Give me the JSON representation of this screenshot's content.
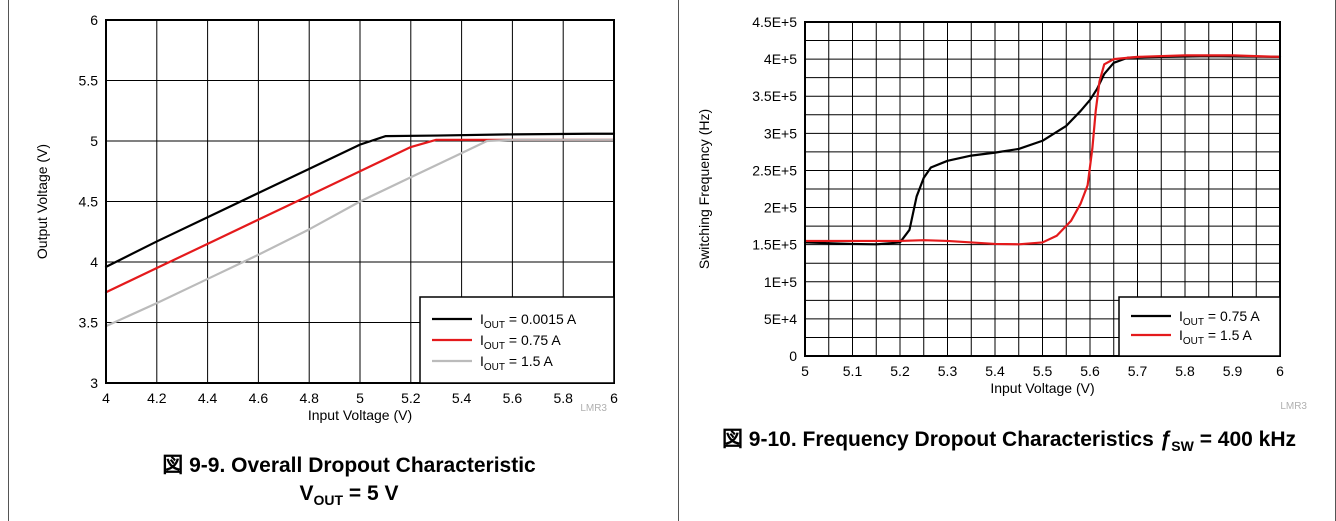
{
  "chart_data": [
    {
      "type": "line",
      "xlabel": "Input Voltage (V)",
      "ylabel": "Output Voltage (V)",
      "xlim": [
        4,
        6
      ],
      "ylim": [
        3,
        6
      ],
      "x_ticks": [
        "4",
        "4.2",
        "4.4",
        "4.6",
        "4.8",
        "5",
        "5.2",
        "5.4",
        "5.6",
        "5.8",
        "6"
      ],
      "y_ticks": [
        "3",
        "3.5",
        "4",
        "4.5",
        "5",
        "5.5",
        "6"
      ],
      "grid": true,
      "legend_position": "bottom-right",
      "watermark": "LMR3",
      "caption": {
        "figure_no": "図 9-9.",
        "title": "Overall Dropout Characteristic",
        "line2_main": "V",
        "line2_sub": "OUT",
        "line2_rest": " = 5 V"
      },
      "series": [
        {
          "name_main": "I",
          "name_sub": "OUT",
          "name_rest": " = 0.0015 A",
          "color": "#000000",
          "points": [
            [
              4.0,
              3.96
            ],
            [
              4.2,
              4.17
            ],
            [
              4.4,
              4.37
            ],
            [
              4.6,
              4.57
            ],
            [
              4.8,
              4.77
            ],
            [
              5.0,
              4.97
            ],
            [
              5.1,
              5.04
            ],
            [
              5.3,
              5.045
            ],
            [
              5.6,
              5.055
            ],
            [
              5.9,
              5.06
            ],
            [
              6.0,
              5.06
            ]
          ]
        },
        {
          "name_main": "I",
          "name_sub": "OUT",
          "name_rest": " = 0.75 A",
          "color": "#e41a1c",
          "points": [
            [
              4.0,
              3.75
            ],
            [
              4.2,
              3.95
            ],
            [
              4.4,
              4.15
            ],
            [
              4.6,
              4.35
            ],
            [
              4.8,
              4.55
            ],
            [
              5.0,
              4.75
            ],
            [
              5.2,
              4.95
            ],
            [
              5.3,
              5.01
            ],
            [
              5.6,
              5.01
            ],
            [
              6.0,
              5.01
            ]
          ]
        },
        {
          "name_main": "I",
          "name_sub": "OUT",
          "name_rest": " = 1.5 A",
          "color": "#bbbbbb",
          "points": [
            [
              4.0,
              3.47
            ],
            [
              4.2,
              3.66
            ],
            [
              4.4,
              3.86
            ],
            [
              4.6,
              4.06
            ],
            [
              4.8,
              4.27
            ],
            [
              5.0,
              4.5
            ],
            [
              5.2,
              4.7
            ],
            [
              5.4,
              4.9
            ],
            [
              5.5,
              5.0
            ],
            [
              5.6,
              5.01
            ],
            [
              6.0,
              5.01
            ]
          ]
        }
      ]
    },
    {
      "type": "line",
      "xlabel": "Input Voltage (V)",
      "ylabel": "Switching Frequency (Hz)",
      "xlim": [
        5,
        6
      ],
      "ylim": [
        0,
        450000
      ],
      "x_ticks": [
        "5",
        "5.1",
        "5.2",
        "5.3",
        "5.4",
        "5.5",
        "5.6",
        "5.7",
        "5.8",
        "5.9",
        "6"
      ],
      "y_ticks": [
        "0",
        "5E+4",
        "1E+5",
        "1.5E+5",
        "2E+5",
        "2.5E+5",
        "3E+5",
        "3.5E+5",
        "4E+5",
        "4.5E+5"
      ],
      "grid": true,
      "legend_position": "bottom-right",
      "watermark": "LMR3",
      "caption": {
        "figure_no": "図 9-10.",
        "title_main": "Frequency Dropout Characteristics ",
        "title_f": "ƒ",
        "title_sub": "SW",
        "title_rest": " = 400 kHz"
      },
      "series": [
        {
          "name_main": "I",
          "name_sub": "OUT",
          "name_rest": " = 0.75 A",
          "color": "#000000",
          "points": [
            [
              5.0,
              153000
            ],
            [
              5.05,
              152000
            ],
            [
              5.1,
              151000
            ],
            [
              5.15,
              150500
            ],
            [
              5.2,
              153000
            ],
            [
              5.22,
              170000
            ],
            [
              5.235,
              215000
            ],
            [
              5.25,
              240000
            ],
            [
              5.265,
              254000
            ],
            [
              5.3,
              263000
            ],
            [
              5.35,
              270000
            ],
            [
              5.4,
              274000
            ],
            [
              5.45,
              279000
            ],
            [
              5.5,
              290000
            ],
            [
              5.55,
              310000
            ],
            [
              5.58,
              330000
            ],
            [
              5.6,
              345000
            ],
            [
              5.615,
              360000
            ],
            [
              5.63,
              380000
            ],
            [
              5.65,
              395000
            ],
            [
              5.68,
              402000
            ],
            [
              5.75,
              403000
            ],
            [
              5.85,
              404000
            ],
            [
              6.0,
              403000
            ]
          ]
        },
        {
          "name_main": "I",
          "name_sub": "OUT",
          "name_rest": " = 1.5 A",
          "color": "#e41a1c",
          "points": [
            [
              5.0,
              155000
            ],
            [
              5.1,
              155000
            ],
            [
              5.2,
              155000
            ],
            [
              5.25,
              156000
            ],
            [
              5.3,
              155000
            ],
            [
              5.35,
              153000
            ],
            [
              5.4,
              151000
            ],
            [
              5.45,
              150500
            ],
            [
              5.5,
              153000
            ],
            [
              5.53,
              162000
            ],
            [
              5.56,
              182000
            ],
            [
              5.58,
              205000
            ],
            [
              5.595,
              230000
            ],
            [
              5.605,
              280000
            ],
            [
              5.612,
              330000
            ],
            [
              5.62,
              370000
            ],
            [
              5.63,
              393000
            ],
            [
              5.65,
              400000
            ],
            [
              5.7,
              403000
            ],
            [
              5.8,
              405000
            ],
            [
              5.9,
              405000
            ],
            [
              6.0,
              403000
            ]
          ]
        }
      ]
    }
  ]
}
